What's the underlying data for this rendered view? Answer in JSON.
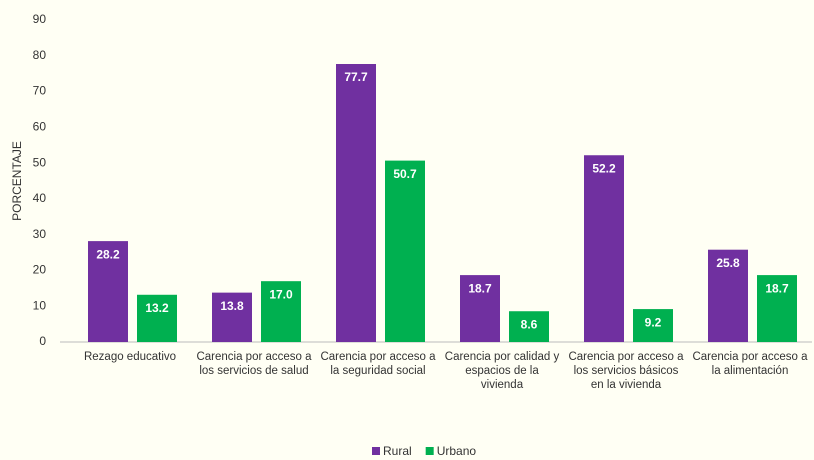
{
  "chart_data": {
    "type": "bar",
    "y_label": "PORCENTAJE",
    "categories": [
      "Rezago educativo",
      "Carencia por acceso a los servicios de salud",
      "Carencia por acceso a la seguridad social",
      "Carencia por calidad y espacios de la vivienda",
      "Carencia por acceso a los servicios básicos en la vivienda",
      "Carencia por acceso a la alimentación"
    ],
    "series": [
      {
        "name": "Rural",
        "color": "#7030a0",
        "values": [
          28.2,
          13.8,
          77.7,
          18.7,
          52.2,
          25.8
        ],
        "value_labels": [
          "28.2",
          "13.8",
          "77.7",
          "18.7",
          "52.2",
          "25.8"
        ]
      },
      {
        "name": "Urbano",
        "color": "#00b050",
        "values": [
          13.2,
          17.0,
          50.7,
          8.6,
          9.2,
          18.7
        ],
        "value_labels": [
          "13.2",
          "17.0",
          "50.7",
          "8.6",
          "9.2",
          "18.7"
        ]
      }
    ],
    "ylim": [
      0,
      90
    ],
    "yticks": [
      0,
      10,
      20,
      30,
      40,
      50,
      60,
      70,
      80,
      90
    ],
    "grid": false,
    "legend": "bottom"
  }
}
